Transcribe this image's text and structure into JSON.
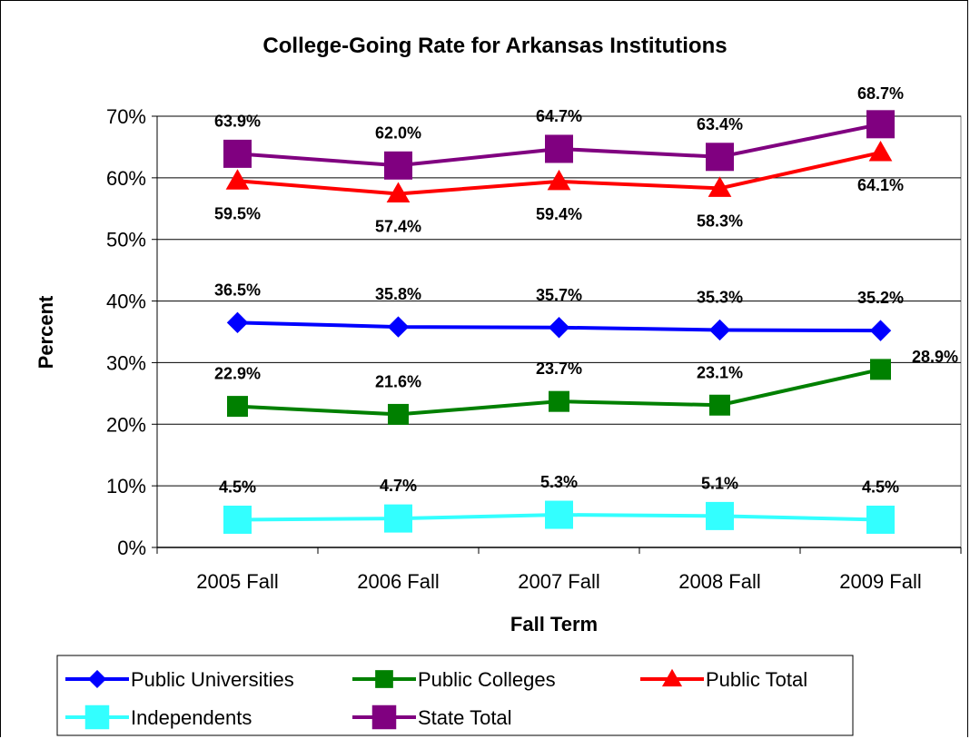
{
  "chart_data": {
    "type": "line",
    "title": "College-Going Rate for Arkansas Institutions",
    "xlabel": "Fall Term",
    "ylabel": "Percent",
    "categories": [
      "2005 Fall",
      "2006 Fall",
      "2007 Fall",
      "2008 Fall",
      "2009 Fall"
    ],
    "ylim": [
      0,
      70
    ],
    "yticks": [
      0,
      10,
      20,
      30,
      40,
      50,
      60,
      70
    ],
    "ytick_labels": [
      "0%",
      "10%",
      "20%",
      "30%",
      "40%",
      "50%",
      "60%",
      "70%"
    ],
    "grid": true,
    "legend_position": "bottom",
    "series": [
      {
        "name": "Public Universities",
        "color": "#0000FF",
        "marker": "diamond",
        "values": [
          36.5,
          35.8,
          35.7,
          35.3,
          35.2
        ],
        "labels": [
          "36.5%",
          "35.8%",
          "35.7%",
          "35.3%",
          "35.2%"
        ],
        "label_position": "above"
      },
      {
        "name": "Public Colleges",
        "color": "#008000",
        "marker": "square",
        "values": [
          22.9,
          21.6,
          23.7,
          23.1,
          28.9
        ],
        "labels": [
          "22.9%",
          "21.6%",
          "23.7%",
          "23.1%",
          "28.9%"
        ],
        "label_position": "above"
      },
      {
        "name": "Public Total",
        "color": "#FF0000",
        "marker": "triangle",
        "values": [
          59.5,
          57.4,
          59.4,
          58.3,
          64.1
        ],
        "labels": [
          "59.5%",
          "57.4%",
          "59.4%",
          "58.3%",
          "64.1%"
        ],
        "label_position": "below"
      },
      {
        "name": "Independents",
        "color": "#33FFFF",
        "marker": "square",
        "values": [
          4.5,
          4.7,
          5.3,
          5.1,
          4.5
        ],
        "labels": [
          "4.5%",
          "4.7%",
          "5.3%",
          "5.1%",
          "4.5%"
        ],
        "label_position": "above"
      },
      {
        "name": "State Total",
        "color": "#800080",
        "marker": "square",
        "values": [
          63.9,
          62.0,
          64.7,
          63.4,
          68.7
        ],
        "labels": [
          "63.9%",
          "62.0%",
          "64.7%",
          "63.4%",
          "68.7%"
        ],
        "label_position": "above"
      }
    ]
  }
}
